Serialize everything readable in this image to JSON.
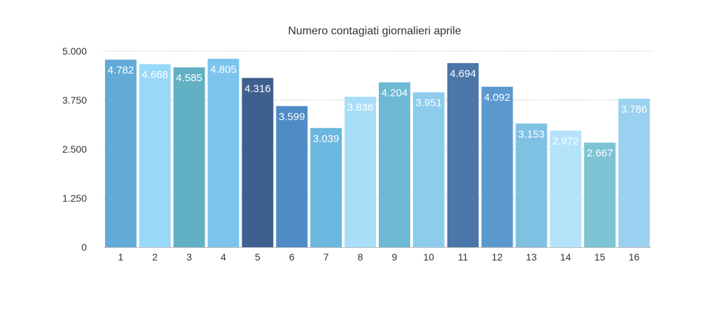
{
  "chart_data": {
    "type": "bar",
    "title": "Numero contagiati giornalieri aprile",
    "xlabel": "",
    "ylabel": "",
    "ylim": [
      0,
      5000
    ],
    "yticks": [
      0,
      1250,
      2500,
      3750,
      5000
    ],
    "ytick_labels": [
      "0",
      "1.250",
      "2.500",
      "3.750",
      "5.000"
    ],
    "grid": true,
    "legend": "none",
    "categories": [
      "1",
      "2",
      "3",
      "4",
      "5",
      "6",
      "7",
      "8",
      "9",
      "10",
      "11",
      "12",
      "13",
      "14",
      "15",
      "16"
    ],
    "values": [
      4782,
      4668,
      4585,
      4805,
      4316,
      3599,
      3039,
      3836,
      4204,
      3951,
      4694,
      4092,
      3153,
      2972,
      2667,
      3786
    ],
    "value_labels": [
      "4.782",
      "4.668",
      "4.585",
      "4.805",
      "4.316",
      "3.599",
      "3.039",
      "3.836",
      "4.204",
      "3.951",
      "4.694",
      "4.092",
      "3.153",
      "2.972",
      "2.667",
      "3.786"
    ],
    "colors": [
      "#62ABD8",
      "#98D8F8",
      "#62B0C4",
      "#7CC4EC",
      "#3F5F8E",
      "#4F8BC6",
      "#6AB7E0",
      "#A8DEF8",
      "#6DB9D3",
      "#8ECCEE",
      "#4A76A8",
      "#5B98CE",
      "#7EC1E3",
      "#B4E3FA",
      "#7CC3D4",
      "#9AD1F0"
    ],
    "grid_color": "#c8c8c8",
    "axis_color": "#bbbbbb",
    "tick_label_color": "#333333",
    "value_label_color": "#ffffff"
  }
}
